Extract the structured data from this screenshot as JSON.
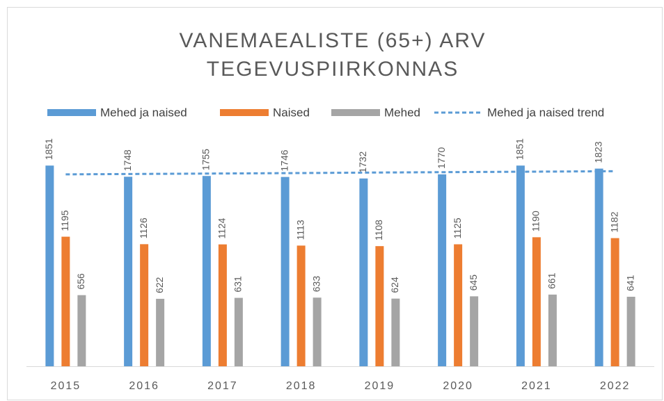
{
  "chart_data": {
    "type": "bar",
    "title": [
      "VANEMAEALISTE (65+) ARV",
      "TEGEVUSPIIRKONNAS"
    ],
    "categories": [
      "2015",
      "2016",
      "2017",
      "2018",
      "2019",
      "2020",
      "2021",
      "2022"
    ],
    "series": [
      {
        "name": "Mehed ja naised",
        "color": "#5b9bd5",
        "values": [
          1851,
          1748,
          1755,
          1746,
          1732,
          1770,
          1851,
          1823
        ]
      },
      {
        "name": "Naised",
        "color": "#ed7d31",
        "values": [
          1195,
          1126,
          1124,
          1113,
          1108,
          1125,
          1190,
          1182
        ]
      },
      {
        "name": "Mehed",
        "color": "#a5a5a5",
        "values": [
          656,
          622,
          631,
          633,
          624,
          645,
          661,
          641
        ]
      },
      {
        "name": "Mehed ja naised trend",
        "color": "#5b9bd5",
        "type": "line",
        "dashed": true,
        "values": [
          1770,
          1774,
          1778,
          1782,
          1787,
          1791,
          1795,
          1799
        ]
      }
    ],
    "ylim": [
      0,
      2000
    ],
    "legend": "top"
  }
}
